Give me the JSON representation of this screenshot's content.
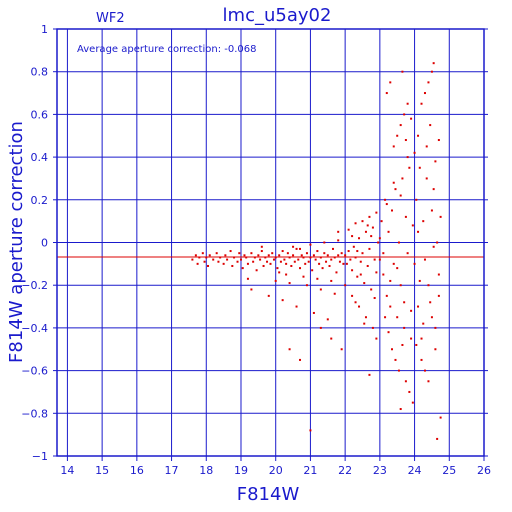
{
  "chart_data": {
    "type": "scatter",
    "title": "lmc_u5ay02",
    "subtitle": "WF2",
    "annotation": "Average aperture correction:  -0.068",
    "xlabel": "F814W",
    "ylabel": "F814W aperture correction",
    "xlim": [
      13.7,
      26
    ],
    "ylim": [
      -1,
      1
    ],
    "x_ticks": [
      14,
      15,
      16,
      17,
      18,
      19,
      20,
      21,
      22,
      23,
      24,
      25,
      26
    ],
    "y_ticks": [
      -1,
      -0.8,
      -0.6,
      -0.4,
      -0.2,
      0,
      0.2,
      0.4,
      0.6,
      0.8,
      1
    ],
    "y_tick_labels": [
      "−1",
      "−0.8",
      "−0.6",
      "−0.4",
      "−0.2",
      "0",
      "0.2",
      "0.4",
      "0.6",
      "0.8",
      "1"
    ],
    "grid": true,
    "average_line": -0.068,
    "colors": {
      "axes": "#1a1acc",
      "grid": "#1a1acc",
      "points": "#dd0000",
      "average_line": "#dd0000"
    },
    "points": [
      [
        17.6,
        -0.08
      ],
      [
        17.7,
        -0.06
      ],
      [
        17.75,
        -0.1
      ],
      [
        17.8,
        -0.07
      ],
      [
        17.9,
        -0.05
      ],
      [
        17.95,
        -0.09
      ],
      [
        18.0,
        -0.07
      ],
      [
        18.05,
        -0.11
      ],
      [
        18.1,
        -0.06
      ],
      [
        18.2,
        -0.08
      ],
      [
        18.3,
        -0.05
      ],
      [
        18.35,
        -0.09
      ],
      [
        18.4,
        -0.07
      ],
      [
        18.5,
        -0.1
      ],
      [
        18.55,
        -0.06
      ],
      [
        18.6,
        -0.08
      ],
      [
        18.7,
        -0.04
      ],
      [
        18.75,
        -0.11
      ],
      [
        18.8,
        -0.07
      ],
      [
        18.9,
        -0.09
      ],
      [
        18.95,
        -0.05
      ],
      [
        19.0,
        -0.08
      ],
      [
        19.05,
        -0.12
      ],
      [
        19.1,
        -0.06
      ],
      [
        19.15,
        -0.07
      ],
      [
        19.2,
        -0.1
      ],
      [
        19.3,
        -0.05
      ],
      [
        19.35,
        -0.09
      ],
      [
        19.4,
        -0.07
      ],
      [
        19.45,
        -0.13
      ],
      [
        19.5,
        -0.06
      ],
      [
        19.55,
        -0.08
      ],
      [
        19.6,
        -0.04
      ],
      [
        19.65,
        -0.11
      ],
      [
        19.7,
        -0.07
      ],
      [
        19.75,
        -0.09
      ],
      [
        19.8,
        -0.06
      ],
      [
        19.85,
        -0.1
      ],
      [
        19.9,
        -0.05
      ],
      [
        19.95,
        -0.08
      ],
      [
        20.0,
        -0.07
      ],
      [
        20.05,
        -0.12
      ],
      [
        20.1,
        -0.06
      ],
      [
        20.15,
        -0.09
      ],
      [
        20.2,
        -0.04
      ],
      [
        20.25,
        -0.08
      ],
      [
        20.3,
        -0.1
      ],
      [
        20.35,
        -0.05
      ],
      [
        20.4,
        -0.07
      ],
      [
        20.45,
        -0.11
      ],
      [
        20.5,
        -0.06
      ],
      [
        20.55,
        -0.09
      ],
      [
        20.6,
        -0.03
      ],
      [
        20.65,
        -0.08
      ],
      [
        20.7,
        -0.12
      ],
      [
        20.75,
        -0.06
      ],
      [
        20.8,
        -0.07
      ],
      [
        20.85,
        -0.1
      ],
      [
        20.9,
        -0.05
      ],
      [
        20.95,
        -0.09
      ],
      [
        21.0,
        -0.07
      ],
      [
        21.05,
        -0.13
      ],
      [
        21.1,
        -0.06
      ],
      [
        21.15,
        -0.08
      ],
      [
        21.2,
        -0.04
      ],
      [
        21.25,
        -0.1
      ],
      [
        21.3,
        -0.07
      ],
      [
        21.35,
        -0.12
      ],
      [
        21.4,
        -0.05
      ],
      [
        21.45,
        -0.09
      ],
      [
        21.5,
        -0.06
      ],
      [
        21.55,
        -0.11
      ],
      [
        21.6,
        -0.08
      ],
      [
        21.65,
        -0.03
      ],
      [
        21.7,
        -0.07
      ],
      [
        21.75,
        -0.14
      ],
      [
        21.8,
        -0.06
      ],
      [
        21.85,
        -0.09
      ],
      [
        21.9,
        -0.05
      ],
      [
        21.95,
        -0.1
      ],
      [
        20.3,
        -0.15
      ],
      [
        20.5,
        -0.02
      ],
      [
        20.8,
        -0.16
      ],
      [
        21.0,
        -0.01
      ],
      [
        21.2,
        -0.17
      ],
      [
        21.4,
        0.0
      ],
      [
        21.6,
        -0.18
      ],
      [
        21.8,
        0.01
      ],
      [
        20.1,
        -0.14
      ],
      [
        20.7,
        -0.03
      ],
      [
        19.2,
        -0.17
      ],
      [
        19.6,
        -0.02
      ],
      [
        20.0,
        -0.18
      ],
      [
        20.4,
        -0.19
      ],
      [
        20.9,
        -0.2
      ],
      [
        21.3,
        -0.22
      ],
      [
        21.7,
        -0.24
      ],
      [
        19.3,
        -0.22
      ],
      [
        19.8,
        -0.25
      ],
      [
        20.2,
        -0.27
      ],
      [
        20.6,
        -0.3
      ],
      [
        21.1,
        -0.33
      ],
      [
        21.5,
        -0.36
      ],
      [
        20.4,
        -0.5
      ],
      [
        20.7,
        -0.55
      ],
      [
        21.0,
        -0.88
      ],
      [
        21.3,
        -0.4
      ],
      [
        21.9,
        -0.5
      ],
      [
        21.6,
        -0.45
      ],
      [
        21.8,
        0.05
      ],
      [
        22.0,
        -0.06
      ],
      [
        22.05,
        -0.1
      ],
      [
        22.1,
        -0.04
      ],
      [
        22.15,
        -0.08
      ],
      [
        22.2,
        -0.13
      ],
      [
        22.25,
        -0.02
      ],
      [
        22.3,
        -0.07
      ],
      [
        22.35,
        -0.16
      ],
      [
        22.4,
        0.02
      ],
      [
        22.45,
        -0.09
      ],
      [
        22.5,
        -0.05
      ],
      [
        22.55,
        -0.19
      ],
      [
        22.6,
        0.05
      ],
      [
        22.65,
        -0.11
      ],
      [
        22.7,
        -0.03
      ],
      [
        22.75,
        -0.22
      ],
      [
        22.8,
        0.07
      ],
      [
        22.85,
        -0.08
      ],
      [
        22.9,
        -0.14
      ],
      [
        22.95,
        0.0
      ],
      [
        22.1,
        0.06
      ],
      [
        22.3,
        0.09
      ],
      [
        22.5,
        0.1
      ],
      [
        22.7,
        0.12
      ],
      [
        22.9,
        0.14
      ],
      [
        22.2,
        -0.25
      ],
      [
        22.4,
        -0.3
      ],
      [
        22.6,
        -0.35
      ],
      [
        22.8,
        -0.4
      ],
      [
        22.0,
        -0.2
      ],
      [
        22.3,
        -0.28
      ],
      [
        22.55,
        -0.38
      ],
      [
        22.7,
        -0.62
      ],
      [
        22.9,
        -0.45
      ],
      [
        22.2,
        0.03
      ],
      [
        22.45,
        -0.15
      ],
      [
        22.65,
        0.08
      ],
      [
        22.85,
        -0.26
      ],
      [
        22.35,
        -0.04
      ],
      [
        22.75,
        0.03
      ],
      [
        23.0,
        -0.08
      ],
      [
        23.05,
        0.1
      ],
      [
        23.1,
        -0.15
      ],
      [
        23.15,
        0.2
      ],
      [
        23.2,
        -0.25
      ],
      [
        23.25,
        0.05
      ],
      [
        23.3,
        -0.3
      ],
      [
        23.35,
        0.15
      ],
      [
        23.4,
        -0.1
      ],
      [
        23.45,
        0.25
      ],
      [
        23.5,
        -0.35
      ],
      [
        23.55,
        0.0
      ],
      [
        23.6,
        -0.2
      ],
      [
        23.65,
        0.3
      ],
      [
        23.7,
        -0.4
      ],
      [
        23.75,
        0.12
      ],
      [
        23.8,
        -0.05
      ],
      [
        23.85,
        0.35
      ],
      [
        23.9,
        -0.45
      ],
      [
        23.95,
        0.08
      ],
      [
        23.0,
        0.02
      ],
      [
        23.1,
        -0.05
      ],
      [
        23.2,
        0.18
      ],
      [
        23.3,
        -0.18
      ],
      [
        23.4,
        0.28
      ],
      [
        23.5,
        -0.12
      ],
      [
        23.6,
        0.22
      ],
      [
        23.7,
        -0.28
      ],
      [
        23.8,
        0.4
      ],
      [
        23.9,
        -0.32
      ],
      [
        23.15,
        -0.35
      ],
      [
        23.25,
        -0.42
      ],
      [
        23.35,
        -0.5
      ],
      [
        23.45,
        -0.55
      ],
      [
        23.55,
        -0.6
      ],
      [
        23.65,
        -0.48
      ],
      [
        23.75,
        -0.65
      ],
      [
        23.85,
        -0.7
      ],
      [
        23.95,
        -0.75
      ],
      [
        23.6,
        -0.78
      ],
      [
        23.4,
        0.45
      ],
      [
        23.5,
        0.5
      ],
      [
        23.6,
        0.55
      ],
      [
        23.7,
        0.6
      ],
      [
        23.8,
        0.65
      ],
      [
        23.2,
        0.7
      ],
      [
        23.3,
        0.75
      ],
      [
        23.65,
        0.8
      ],
      [
        23.9,
        0.58
      ],
      [
        23.75,
        0.48
      ],
      [
        24.0,
        -0.1
      ],
      [
        24.05,
        0.2
      ],
      [
        24.1,
        -0.3
      ],
      [
        24.15,
        0.35
      ],
      [
        24.2,
        -0.45
      ],
      [
        24.25,
        0.1
      ],
      [
        24.3,
        -0.6
      ],
      [
        24.35,
        0.45
      ],
      [
        24.4,
        -0.2
      ],
      [
        24.45,
        0.55
      ],
      [
        24.5,
        -0.35
      ],
      [
        24.55,
        0.25
      ],
      [
        24.6,
        -0.5
      ],
      [
        24.65,
        0.0
      ],
      [
        24.7,
        -0.15
      ],
      [
        24.2,
        0.65
      ],
      [
        24.3,
        0.7
      ],
      [
        24.4,
        0.75
      ],
      [
        24.5,
        0.8
      ],
      [
        24.55,
        0.84
      ],
      [
        24.1,
        0.05
      ],
      [
        24.3,
        -0.08
      ],
      [
        24.5,
        0.15
      ],
      [
        24.7,
        -0.25
      ],
      [
        24.2,
        -0.55
      ],
      [
        24.4,
        -0.65
      ],
      [
        24.6,
        -0.4
      ],
      [
        24.65,
        -0.92
      ],
      [
        24.75,
        -0.82
      ],
      [
        24.0,
        0.42
      ],
      [
        24.15,
        -0.18
      ],
      [
        24.35,
        0.3
      ],
      [
        24.45,
        -0.28
      ],
      [
        24.6,
        0.38
      ],
      [
        24.7,
        0.48
      ],
      [
        24.25,
        -0.38
      ],
      [
        24.05,
        -0.48
      ],
      [
        24.55,
        -0.02
      ],
      [
        24.75,
        0.12
      ],
      [
        24.1,
        0.5
      ]
    ]
  }
}
